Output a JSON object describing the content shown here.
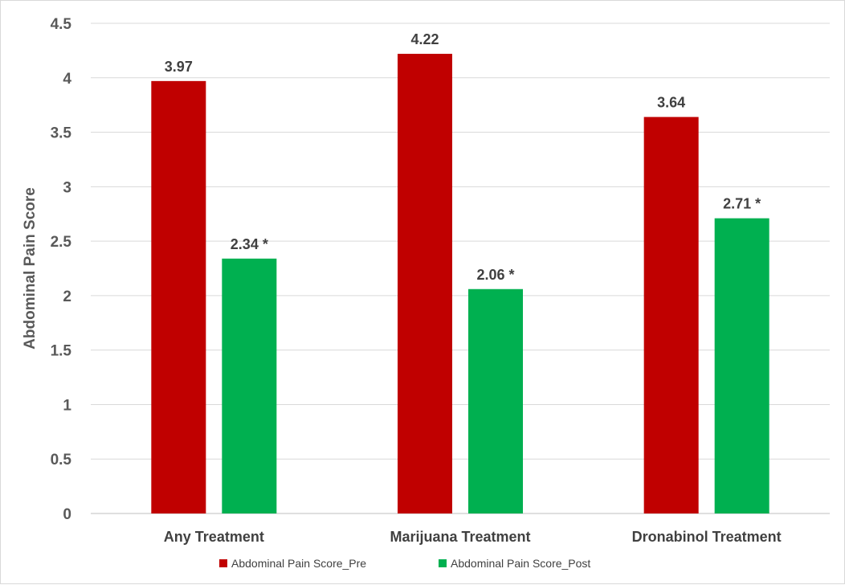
{
  "chart_data": {
    "type": "bar",
    "title": "",
    "xlabel": "",
    "ylabel": "Abdominal Pain Score",
    "ylim": [
      0,
      4.5
    ],
    "ytick_step": 0.5,
    "yticks": [
      "0",
      "0.5",
      "1",
      "1.5",
      "2",
      "2.5",
      "3",
      "3.5",
      "4",
      "4.5"
    ],
    "grid": true,
    "legend_position": "bottom",
    "categories": [
      "Any Treatment",
      "Marijuana Treatment",
      "Dronabinol Treatment"
    ],
    "series": [
      {
        "name": "Abdominal Pain Score_Pre",
        "color": "#c00000",
        "values": [
          3.97,
          4.22,
          3.64
        ],
        "labels": [
          "3.97",
          "4.22",
          "3.64"
        ]
      },
      {
        "name": "Abdominal Pain Score_Post",
        "color": "#00b050",
        "values": [
          2.34,
          2.06,
          2.71
        ],
        "labels": [
          "2.34 *",
          "2.06 *",
          "2.71 *"
        ]
      }
    ]
  }
}
